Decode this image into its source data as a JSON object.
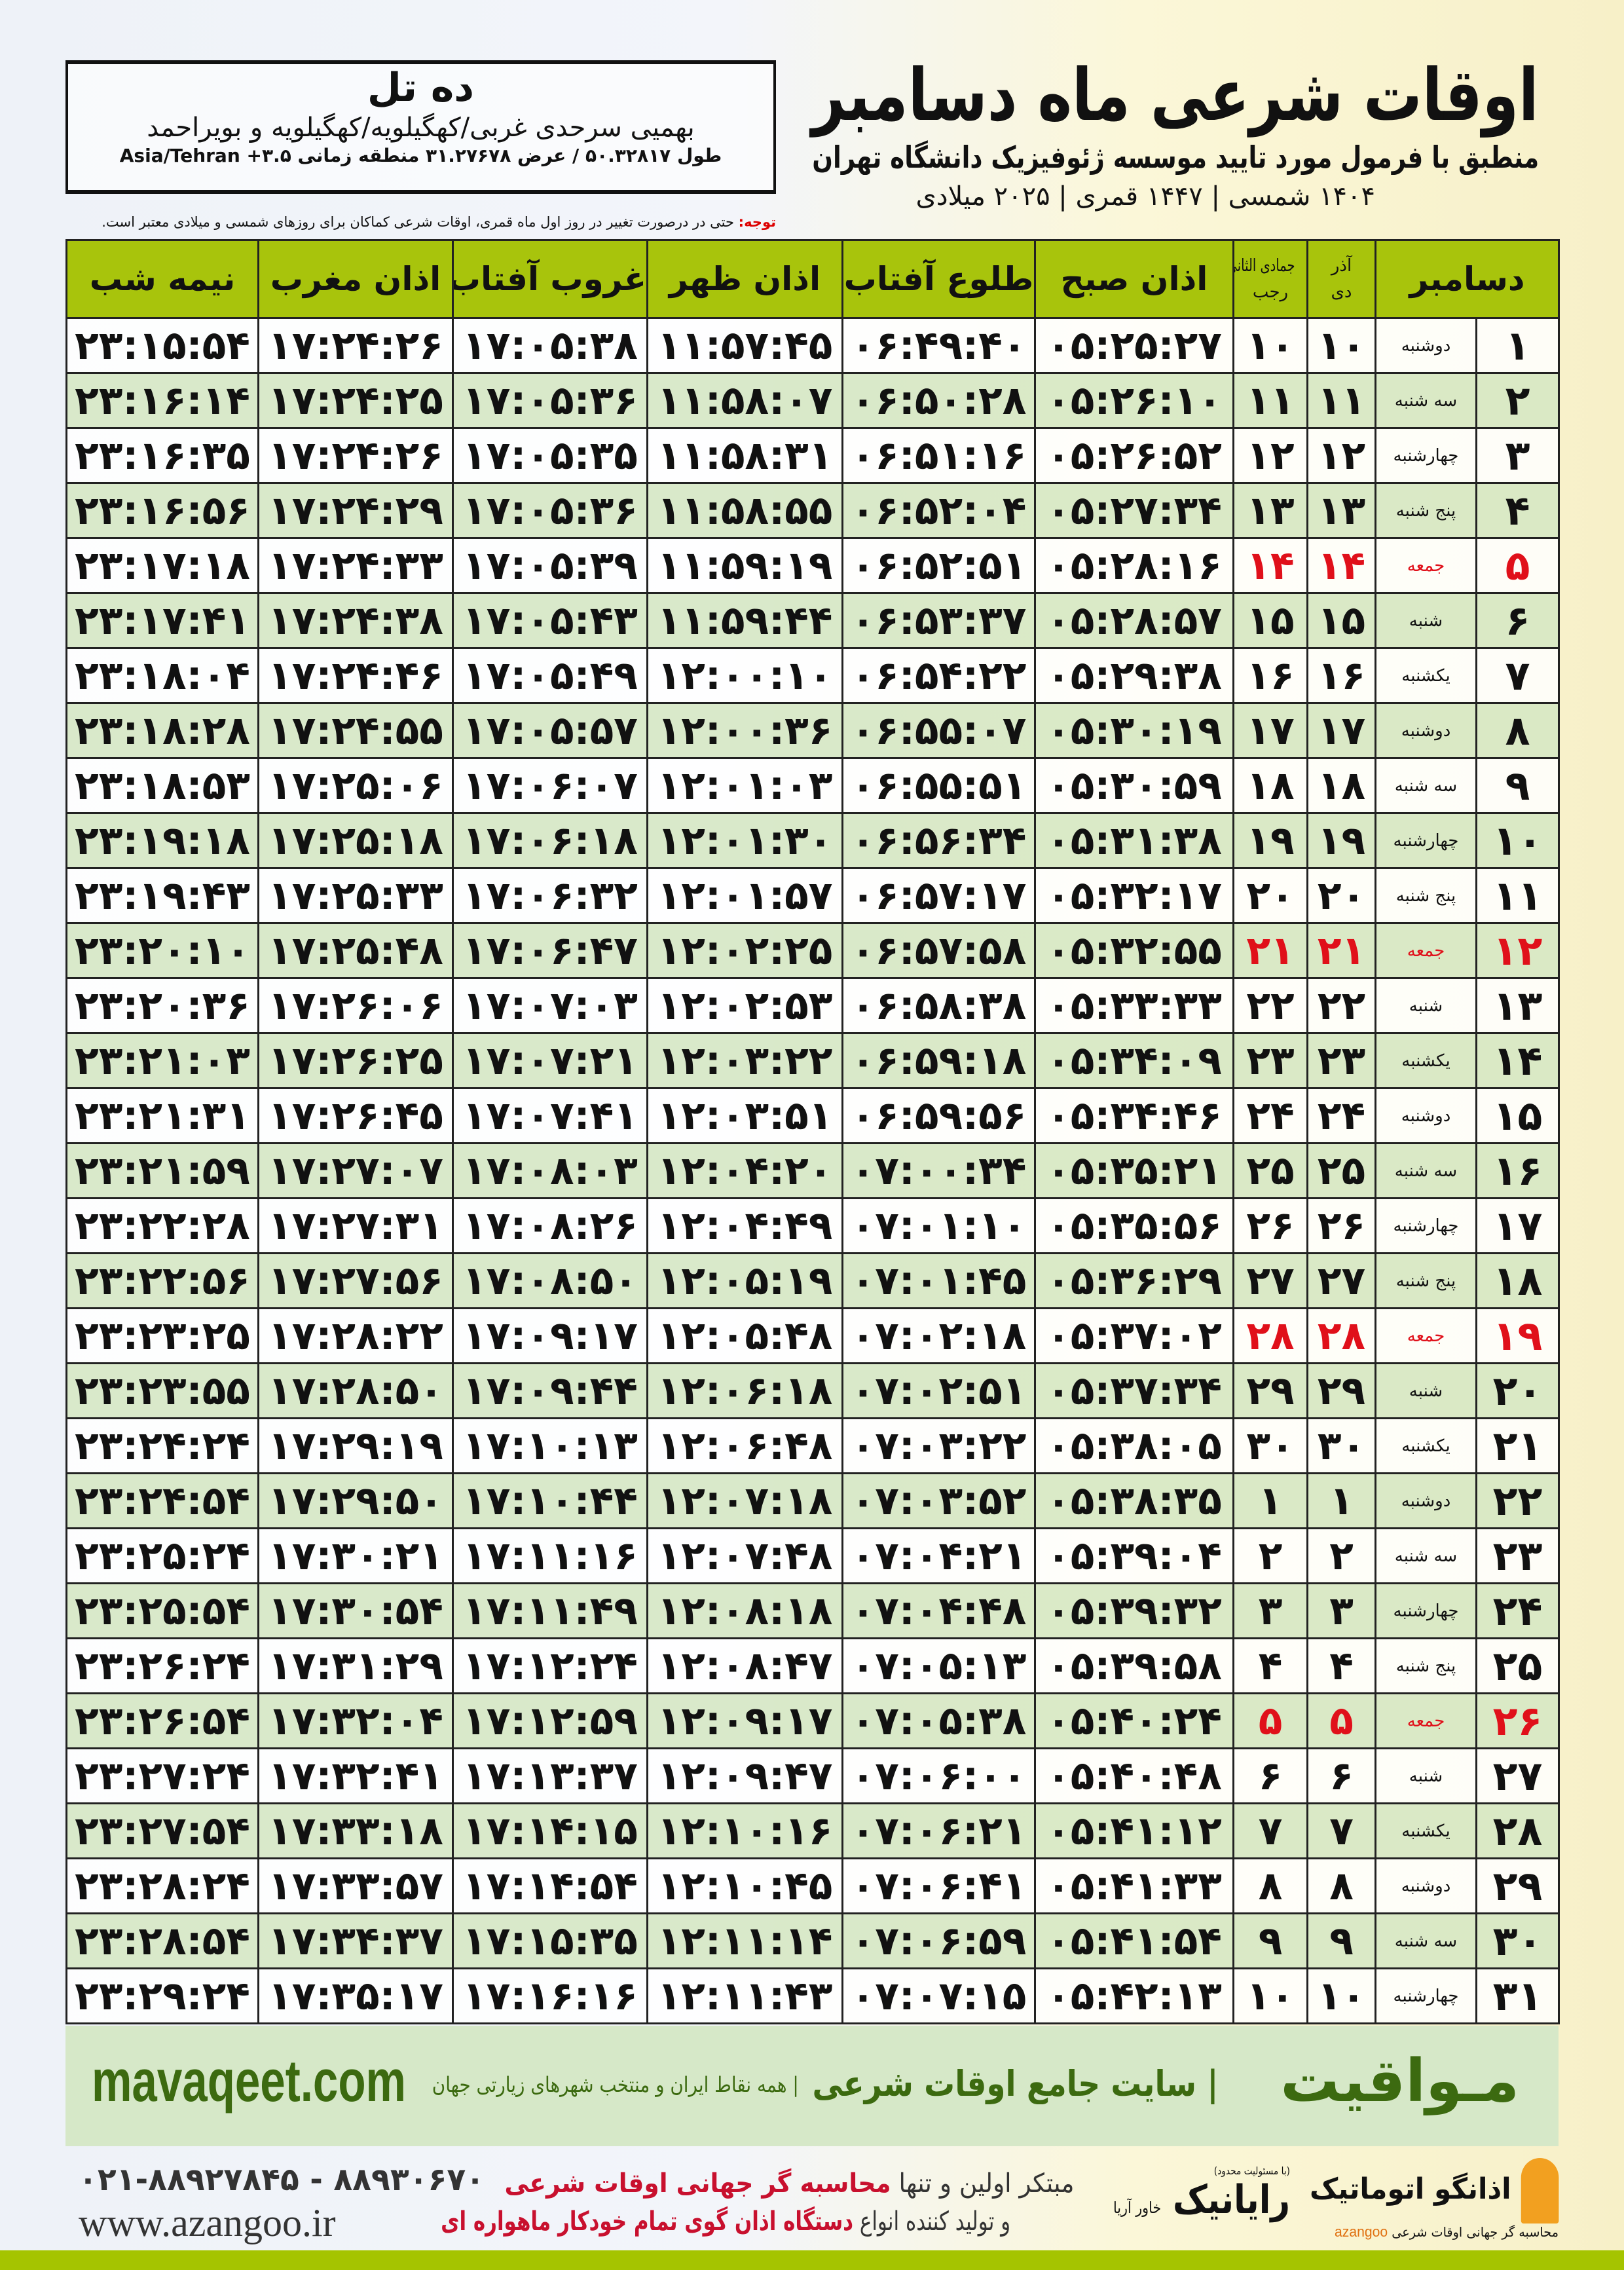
{
  "header": {
    "title": "اوقات شرعی ماه دسامبر",
    "subtitle": "منطبق با فرمول مورد تایید موسسه ژئوفیزیک دانشگاه تهران",
    "dateline": "۱۴۰۴ شمسی | ۱۴۴۷ قمری | ۲۰۲۵ میلادی"
  },
  "location": {
    "name": "ده تل",
    "region": "بهمیی سرحدی غربی/کهگیلویه/کهگیلویه و بویراحمد",
    "coords": "طول ۵۰.۳۲۸۱۷ / عرض ۳۱.۲۷۶۷۸ منطقه زمانی Asia/Tehran +۳.۵"
  },
  "note": {
    "label": "توجه:",
    "text": " حتی در درصورت تغییر در روز اول ماه قمری، اوقات شرعی کماکان برای روزهای شمسی و میلادی معتبر است."
  },
  "columns": {
    "month": "دسامبر",
    "shamsi_top": "آذر",
    "shamsi_bottom": "دی",
    "hijri_top": "جمادی الثانی",
    "hijri_bottom": "رجب",
    "sobh": "اذان صبح",
    "tolu": "طلوع آفتاب",
    "zohr": "اذان ظهر",
    "ghorub": "غروب آفتاب",
    "maghrib": "اذان مغرب",
    "nimeshab": "نیمه شب"
  },
  "colors": {
    "header_green": "#a8c40c",
    "friday_red": "#e0101a",
    "band_green": "#d6e8c8",
    "brand_green": "#3c6a10"
  },
  "rows": [
    [
      "۱",
      "دوشنبه",
      "۱۰",
      "۱۰",
      "۰۵:۲۵:۲۷",
      "۰۶:۴۹:۴۰",
      "۱۱:۵۷:۴۵",
      "۱۷:۰۵:۳۸",
      "۱۷:۲۴:۲۶",
      "۲۳:۱۵:۵۴"
    ],
    [
      "۲",
      "سه شنبه",
      "۱۱",
      "۱۱",
      "۰۵:۲۶:۱۰",
      "۰۶:۵۰:۲۸",
      "۱۱:۵۸:۰۷",
      "۱۷:۰۵:۳۶",
      "۱۷:۲۴:۲۵",
      "۲۳:۱۶:۱۴"
    ],
    [
      "۳",
      "چهارشنبه",
      "۱۲",
      "۱۲",
      "۰۵:۲۶:۵۲",
      "۰۶:۵۱:۱۶",
      "۱۱:۵۸:۳۱",
      "۱۷:۰۵:۳۵",
      "۱۷:۲۴:۲۶",
      "۲۳:۱۶:۳۵"
    ],
    [
      "۴",
      "پنج شنبه",
      "۱۳",
      "۱۳",
      "۰۵:۲۷:۳۴",
      "۰۶:۵۲:۰۴",
      "۱۱:۵۸:۵۵",
      "۱۷:۰۵:۳۶",
      "۱۷:۲۴:۲۹",
      "۲۳:۱۶:۵۶"
    ],
    [
      "۵",
      "جمعه",
      "۱۴",
      "۱۴",
      "۰۵:۲۸:۱۶",
      "۰۶:۵۲:۵۱",
      "۱۱:۵۹:۱۹",
      "۱۷:۰۵:۳۹",
      "۱۷:۲۴:۳۳",
      "۲۳:۱۷:۱۸"
    ],
    [
      "۶",
      "شنبه",
      "۱۵",
      "۱۵",
      "۰۵:۲۸:۵۷",
      "۰۶:۵۳:۳۷",
      "۱۱:۵۹:۴۴",
      "۱۷:۰۵:۴۳",
      "۱۷:۲۴:۳۸",
      "۲۳:۱۷:۴۱"
    ],
    [
      "۷",
      "یکشنبه",
      "۱۶",
      "۱۶",
      "۰۵:۲۹:۳۸",
      "۰۶:۵۴:۲۲",
      "۱۲:۰۰:۱۰",
      "۱۷:۰۵:۴۹",
      "۱۷:۲۴:۴۶",
      "۲۳:۱۸:۰۴"
    ],
    [
      "۸",
      "دوشنبه",
      "۱۷",
      "۱۷",
      "۰۵:۳۰:۱۹",
      "۰۶:۵۵:۰۷",
      "۱۲:۰۰:۳۶",
      "۱۷:۰۵:۵۷",
      "۱۷:۲۴:۵۵",
      "۲۳:۱۸:۲۸"
    ],
    [
      "۹",
      "سه شنبه",
      "۱۸",
      "۱۸",
      "۰۵:۳۰:۵۹",
      "۰۶:۵۵:۵۱",
      "۱۲:۰۱:۰۳",
      "۱۷:۰۶:۰۷",
      "۱۷:۲۵:۰۶",
      "۲۳:۱۸:۵۳"
    ],
    [
      "۱۰",
      "چهارشنبه",
      "۱۹",
      "۱۹",
      "۰۵:۳۱:۳۸",
      "۰۶:۵۶:۳۴",
      "۱۲:۰۱:۳۰",
      "۱۷:۰۶:۱۸",
      "۱۷:۲۵:۱۸",
      "۲۳:۱۹:۱۸"
    ],
    [
      "۱۱",
      "پنج شنبه",
      "۲۰",
      "۲۰",
      "۰۵:۳۲:۱۷",
      "۰۶:۵۷:۱۷",
      "۱۲:۰۱:۵۷",
      "۱۷:۰۶:۳۲",
      "۱۷:۲۵:۳۳",
      "۲۳:۱۹:۴۳"
    ],
    [
      "۱۲",
      "جمعه",
      "۲۱",
      "۲۱",
      "۰۵:۳۲:۵۵",
      "۰۶:۵۷:۵۸",
      "۱۲:۰۲:۲۵",
      "۱۷:۰۶:۴۷",
      "۱۷:۲۵:۴۸",
      "۲۳:۲۰:۱۰"
    ],
    [
      "۱۳",
      "شنبه",
      "۲۲",
      "۲۲",
      "۰۵:۳۳:۳۳",
      "۰۶:۵۸:۳۸",
      "۱۲:۰۲:۵۳",
      "۱۷:۰۷:۰۳",
      "۱۷:۲۶:۰۶",
      "۲۳:۲۰:۳۶"
    ],
    [
      "۱۴",
      "یکشنبه",
      "۲۳",
      "۲۳",
      "۰۵:۳۴:۰۹",
      "۰۶:۵۹:۱۸",
      "۱۲:۰۳:۲۲",
      "۱۷:۰۷:۲۱",
      "۱۷:۲۶:۲۵",
      "۲۳:۲۱:۰۳"
    ],
    [
      "۱۵",
      "دوشنبه",
      "۲۴",
      "۲۴",
      "۰۵:۳۴:۴۶",
      "۰۶:۵۹:۵۶",
      "۱۲:۰۳:۵۱",
      "۱۷:۰۷:۴۱",
      "۱۷:۲۶:۴۵",
      "۲۳:۲۱:۳۱"
    ],
    [
      "۱۶",
      "سه شنبه",
      "۲۵",
      "۲۵",
      "۰۵:۳۵:۲۱",
      "۰۷:۰۰:۳۴",
      "۱۲:۰۴:۲۰",
      "۱۷:۰۸:۰۳",
      "۱۷:۲۷:۰۷",
      "۲۳:۲۱:۵۹"
    ],
    [
      "۱۷",
      "چهارشنبه",
      "۲۶",
      "۲۶",
      "۰۵:۳۵:۵۶",
      "۰۷:۰۱:۱۰",
      "۱۲:۰۴:۴۹",
      "۱۷:۰۸:۲۶",
      "۱۷:۲۷:۳۱",
      "۲۳:۲۲:۲۸"
    ],
    [
      "۱۸",
      "پنج شنبه",
      "۲۷",
      "۲۷",
      "۰۵:۳۶:۲۹",
      "۰۷:۰۱:۴۵",
      "۱۲:۰۵:۱۹",
      "۱۷:۰۸:۵۰",
      "۱۷:۲۷:۵۶",
      "۲۳:۲۲:۵۶"
    ],
    [
      "۱۹",
      "جمعه",
      "۲۸",
      "۲۸",
      "۰۵:۳۷:۰۲",
      "۰۷:۰۲:۱۸",
      "۱۲:۰۵:۴۸",
      "۱۷:۰۹:۱۷",
      "۱۷:۲۸:۲۲",
      "۲۳:۲۳:۲۵"
    ],
    [
      "۲۰",
      "شنبه",
      "۲۹",
      "۲۹",
      "۰۵:۳۷:۳۴",
      "۰۷:۰۲:۵۱",
      "۱۲:۰۶:۱۸",
      "۱۷:۰۹:۴۴",
      "۱۷:۲۸:۵۰",
      "۲۳:۲۳:۵۵"
    ],
    [
      "۲۱",
      "یکشنبه",
      "۳۰",
      "۳۰",
      "۰۵:۳۸:۰۵",
      "۰۷:۰۳:۲۲",
      "۱۲:۰۶:۴۸",
      "۱۷:۱۰:۱۳",
      "۱۷:۲۹:۱۹",
      "۲۳:۲۴:۲۴"
    ],
    [
      "۲۲",
      "دوشنبه",
      "۱",
      "۱",
      "۰۵:۳۸:۳۵",
      "۰۷:۰۳:۵۲",
      "۱۲:۰۷:۱۸",
      "۱۷:۱۰:۴۴",
      "۱۷:۲۹:۵۰",
      "۲۳:۲۴:۵۴"
    ],
    [
      "۲۳",
      "سه شنبه",
      "۲",
      "۲",
      "۰۵:۳۹:۰۴",
      "۰۷:۰۴:۲۱",
      "۱۲:۰۷:۴۸",
      "۱۷:۱۱:۱۶",
      "۱۷:۳۰:۲۱",
      "۲۳:۲۵:۲۴"
    ],
    [
      "۲۴",
      "چهارشنبه",
      "۳",
      "۳",
      "۰۵:۳۹:۳۲",
      "۰۷:۰۴:۴۸",
      "۱۲:۰۸:۱۸",
      "۱۷:۱۱:۴۹",
      "۱۷:۳۰:۵۴",
      "۲۳:۲۵:۵۴"
    ],
    [
      "۲۵",
      "پنج شنبه",
      "۴",
      "۴",
      "۰۵:۳۹:۵۸",
      "۰۷:۰۵:۱۳",
      "۱۲:۰۸:۴۷",
      "۱۷:۱۲:۲۴",
      "۱۷:۳۱:۲۹",
      "۲۳:۲۶:۲۴"
    ],
    [
      "۲۶",
      "جمعه",
      "۵",
      "۵",
      "۰۵:۴۰:۲۴",
      "۰۷:۰۵:۳۸",
      "۱۲:۰۹:۱۷",
      "۱۷:۱۲:۵۹",
      "۱۷:۳۲:۰۴",
      "۲۳:۲۶:۵۴"
    ],
    [
      "۲۷",
      "شنبه",
      "۶",
      "۶",
      "۰۵:۴۰:۴۸",
      "۰۷:۰۶:۰۰",
      "۱۲:۰۹:۴۷",
      "۱۷:۱۳:۳۷",
      "۱۷:۳۲:۴۱",
      "۲۳:۲۷:۲۴"
    ],
    [
      "۲۸",
      "یکشنبه",
      "۷",
      "۷",
      "۰۵:۴۱:۱۲",
      "۰۷:۰۶:۲۱",
      "۱۲:۱۰:۱۶",
      "۱۷:۱۴:۱۵",
      "۱۷:۳۳:۱۸",
      "۲۳:۲۷:۵۴"
    ],
    [
      "۲۹",
      "دوشنبه",
      "۸",
      "۸",
      "۰۵:۴۱:۳۳",
      "۰۷:۰۶:۴۱",
      "۱۲:۱۰:۴۵",
      "۱۷:۱۴:۵۴",
      "۱۷:۳۳:۵۷",
      "۲۳:۲۸:۲۴"
    ],
    [
      "۳۰",
      "سه شنبه",
      "۹",
      "۹",
      "۰۵:۴۱:۵۴",
      "۰۷:۰۶:۵۹",
      "۱۲:۱۱:۱۴",
      "۱۷:۱۵:۳۵",
      "۱۷:۳۴:۳۷",
      "۲۳:۲۸:۵۴"
    ],
    [
      "۳۱",
      "چهارشنبه",
      "۱۰",
      "۱۰",
      "۰۵:۴۲:۱۳",
      "۰۷:۰۷:۱۵",
      "۱۲:۱۱:۴۳",
      "۱۷:۱۶:۱۶",
      "۱۷:۳۵:۱۷",
      "۲۳:۲۹:۲۴"
    ]
  ],
  "friday_label": "جمعه",
  "band": {
    "logo": "مـواقیت",
    "tagline": "| سایت جامع اوقات شرعی",
    "sub": "| همه نقاط ایران و منتخب شهرهای زیارتی جهان",
    "url": "mavaqeet.com"
  },
  "footer": {
    "phone": "۰۲۱-۸۸۹۲۷۸۴۵ - ۸۸۹۳۰۶۷۰",
    "web": "www.azangoo.ir",
    "promo1a": "مبتکر اولین و تنها ",
    "promo1b": "محاسبه گر جهانی اوقات شرعی",
    "promo2a": "و تولید کننده انواع ",
    "promo2b": "دستگاه اذان گوی تمام خودکار ماهواره ای",
    "brand1_small": "(با مسئولیت محدود)",
    "brand1": "رایانیک",
    "brand1_sub": "خاور آریا",
    "brand2": "اذانگو اتوماتیک",
    "brand2_sub": "محاسبه گر جهانی اوقات شرعی",
    "brand2_en": "azangoo"
  }
}
